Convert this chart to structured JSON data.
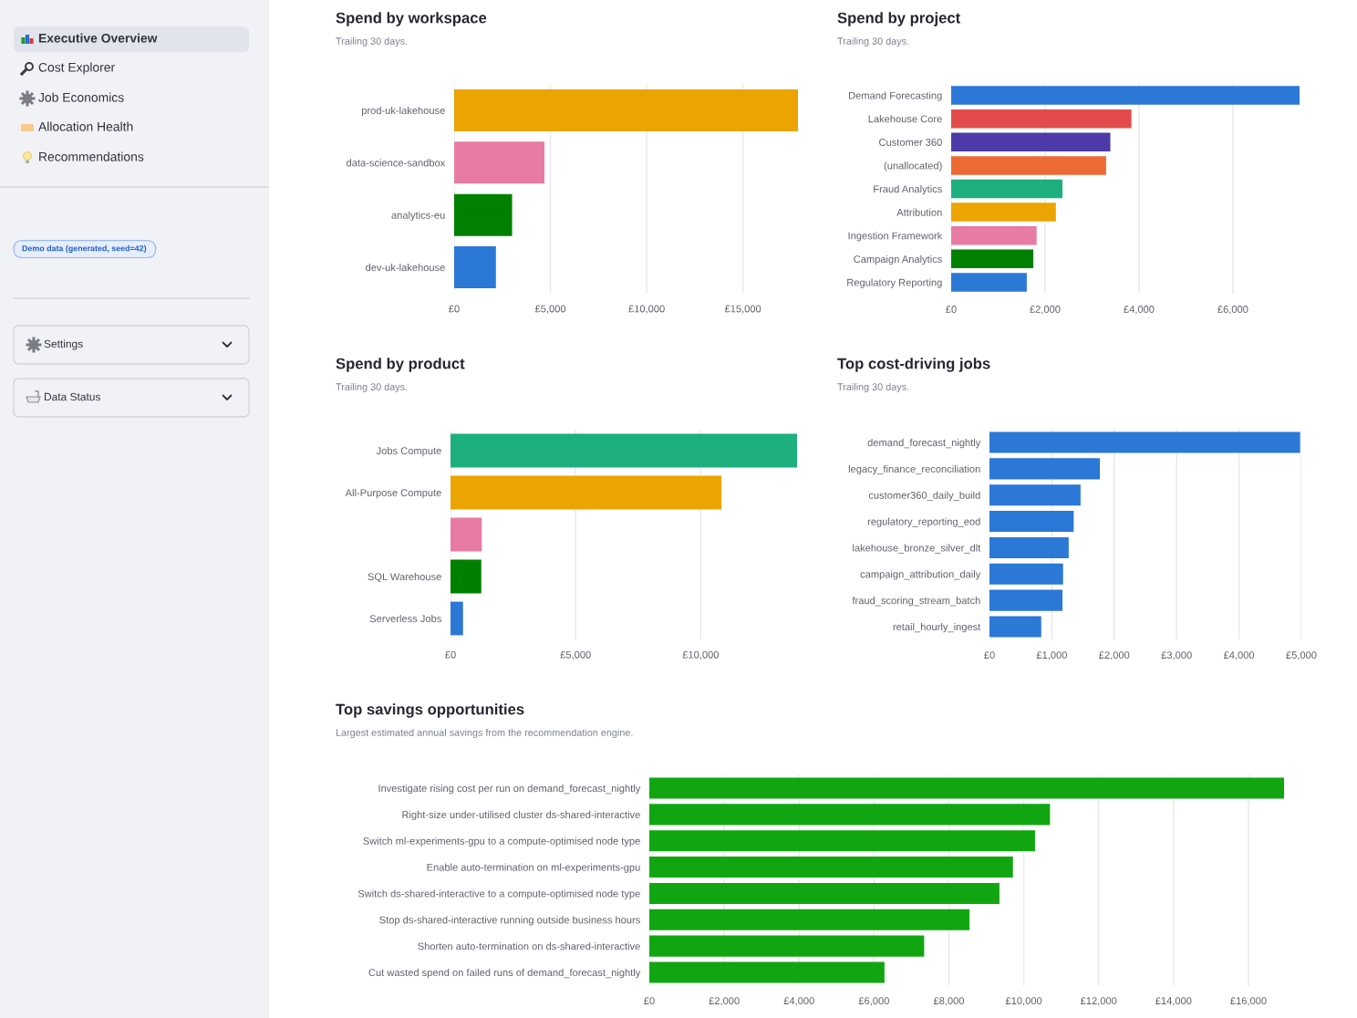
{
  "chart_data": [
    {
      "type": "other",
      "annotations": [
        "Executive Overview",
        "Cost Explorer",
        "Job Economics",
        "Allocation Health",
        "Recommendations",
        "Demo data (generated, seed=42)",
        "Settings",
        "Data Status"
      ]
    },
    {
      "type": "bar",
      "orientation": "horizontal",
      "title": "Spend by workspace",
      "subtitle": "Trailing 30 days.",
      "categories": [
        "prod-uk-lakehouse",
        "data-science-sandbox",
        "analytics-eu",
        "dev-uk-lakehouse"
      ],
      "values": [
        17860,
        4690,
        3010,
        2170
      ],
      "colors": [
        "#eca400",
        "#e87ba4",
        "#008000",
        "#2b78d7"
      ],
      "xlim": [
        0,
        17860
      ],
      "xticks": [
        {
          "value": 0,
          "label": "£0"
        },
        {
          "value": 5000,
          "label": "£5,000"
        },
        {
          "value": 10000,
          "label": "£10,000"
        },
        {
          "value": 15000,
          "label": "£15,000"
        }
      ],
      "grid": "x"
    },
    {
      "type": "bar",
      "orientation": "horizontal",
      "title": "Spend by project",
      "subtitle": "Trailing 30 days.",
      "categories": [
        "Demand Forecasting",
        "Lakehouse Core",
        "Customer 360",
        "(unallocated)",
        "Fraud Analytics",
        "Attribution",
        "Ingestion Framework",
        "Campaign Analytics",
        "Regulatory Reporting"
      ],
      "values": [
        7420,
        3840,
        3390,
        3300,
        2370,
        2230,
        1820,
        1750,
        1610
      ],
      "colors": [
        "#2b78d7",
        "#e34b4b",
        "#4b3aa8",
        "#ec6a33",
        "#1daf7e",
        "#eca400",
        "#e87ba4",
        "#008000",
        "#2b78d7"
      ],
      "xlim": [
        0,
        7420
      ],
      "xticks": [
        {
          "value": 0,
          "label": "£0"
        },
        {
          "value": 2000,
          "label": "£2,000"
        },
        {
          "value": 4000,
          "label": "£4,000"
        },
        {
          "value": 6000,
          "label": "£6,000"
        }
      ],
      "grid": "x"
    },
    {
      "type": "bar",
      "orientation": "horizontal",
      "title": "Spend by product",
      "subtitle": "Trailing 30 days.",
      "categories": [
        "Jobs Compute",
        "All-Purpose Compute",
        null,
        "SQL Warehouse",
        "Serverless Jobs"
      ],
      "values": [
        13850,
        10830,
        1250,
        1230,
        500
      ],
      "colors": [
        "#1daf7e",
        "#eca400",
        "#e87ba4",
        "#008000",
        "#2b78d7"
      ],
      "xlim": [
        0,
        13850
      ],
      "xticks": [
        {
          "value": 0,
          "label": "£0"
        },
        {
          "value": 5000,
          "label": "£5,000"
        },
        {
          "value": 10000,
          "label": "£10,000"
        }
      ],
      "grid": "x"
    },
    {
      "type": "bar",
      "orientation": "horizontal",
      "title": "Top cost-driving jobs",
      "subtitle": "Trailing 30 days.",
      "categories": [
        "demand_forecast_nightly",
        "legacy_finance_reconciliation",
        "customer360_daily_build",
        "regulatory_reporting_eod",
        "lakehouse_bronze_silver_dlt",
        "campaign_attribution_daily",
        "fraud_scoring_stream_batch",
        "retail_hourly_ingest"
      ],
      "values": [
        4980,
        1770,
        1460,
        1350,
        1270,
        1180,
        1170,
        830
      ],
      "color": "#2b78d7",
      "xlim": [
        0,
        5000
      ],
      "xticks": [
        {
          "value": 0,
          "label": "£0"
        },
        {
          "value": 1000,
          "label": "£1,000"
        },
        {
          "value": 2000,
          "label": "£2,000"
        },
        {
          "value": 3000,
          "label": "£3,000"
        },
        {
          "value": 4000,
          "label": "£4,000"
        },
        {
          "value": 5000,
          "label": "£5,000"
        }
      ],
      "grid": "x"
    },
    {
      "type": "bar",
      "orientation": "horizontal",
      "title": "Top savings opportunities",
      "subtitle": "Largest estimated annual savings from the recommendation engine.",
      "categories": [
        "Investigate rising cost per run on demand_forecast_nightly",
        "Right-size under-utilised cluster ds-shared-interactive",
        "Switch ml-experiments-gpu to a compute-optimised node type",
        "Enable auto-termination on ml-experiments-gpu",
        "Switch ds-shared-interactive to a compute-optimised node type",
        "Stop ds-shared-interactive running outside business hours",
        "Shorten auto-termination on ds-shared-interactive",
        "Cut wasted spend on failed runs of demand_forecast_nightly"
      ],
      "values": [
        16950,
        10700,
        10300,
        9710,
        9350,
        8550,
        7340,
        6280
      ],
      "color": "#11a611",
      "xlim": [
        0,
        16950
      ],
      "xticks": [
        {
          "value": 0,
          "label": "£0"
        },
        {
          "value": 2000,
          "label": "£2,000"
        },
        {
          "value": 4000,
          "label": "£4,000"
        },
        {
          "value": 6000,
          "label": "£6,000"
        },
        {
          "value": 8000,
          "label": "£8,000"
        },
        {
          "value": 10000,
          "label": "£10,000"
        },
        {
          "value": 12000,
          "label": "£12,000"
        },
        {
          "value": 14000,
          "label": "£14,000"
        },
        {
          "value": 16000,
          "label": "£16,000"
        }
      ],
      "grid": "x"
    }
  ]
}
